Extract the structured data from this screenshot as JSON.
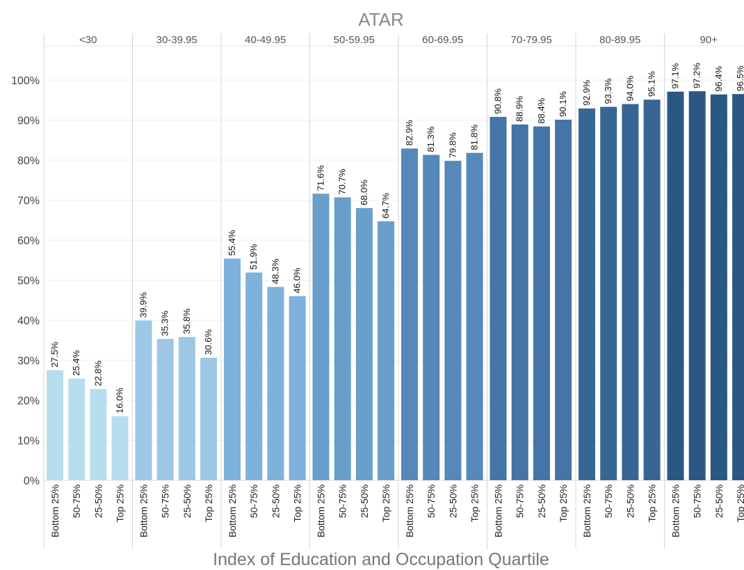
{
  "chart_data": {
    "type": "bar",
    "title": "ATAR",
    "xlabel": "Index of Education and Occupation Quartile",
    "ylabel": "",
    "ylim": [
      0,
      100
    ],
    "yticks": [
      "0%",
      "10%",
      "20%",
      "30%",
      "40%",
      "50%",
      "60%",
      "70%",
      "80%",
      "90%",
      "100%"
    ],
    "groups": [
      {
        "label": "<30",
        "color": "#b8ddef",
        "bars": [
          {
            "category": "Bottom 25%",
            "value": 27.5,
            "label": "27.5%"
          },
          {
            "category": "50-75%",
            "value": 25.4,
            "label": "25.4%"
          },
          {
            "category": "25-50%",
            "value": 22.8,
            "label": "22.8%"
          },
          {
            "category": "Top 25%",
            "value": 16.0,
            "label": "16.0%"
          }
        ]
      },
      {
        "label": "30-39.95",
        "color": "#9cc8e6",
        "bars": [
          {
            "category": "Bottom 25%",
            "value": 39.9,
            "label": "39.9%"
          },
          {
            "category": "50-75%",
            "value": 35.3,
            "label": "35.3%"
          },
          {
            "category": "25-50%",
            "value": 35.8,
            "label": "35.8%"
          },
          {
            "category": "Top 25%",
            "value": 30.6,
            "label": "30.6%"
          }
        ]
      },
      {
        "label": "40-49.95",
        "color": "#7eb1db",
        "bars": [
          {
            "category": "Bottom 25%",
            "value": 55.4,
            "label": "55.4%"
          },
          {
            "category": "50-75%",
            "value": 51.9,
            "label": "51.9%"
          },
          {
            "category": "25-50%",
            "value": 48.3,
            "label": "48.3%"
          },
          {
            "category": "Top 25%",
            "value": 46.0,
            "label": "46.0%"
          }
        ]
      },
      {
        "label": "50-59.95",
        "color": "#6a9fcb",
        "bars": [
          {
            "category": "Bottom 25%",
            "value": 71.6,
            "label": "71.6%"
          },
          {
            "category": "50-75%",
            "value": 70.7,
            "label": "70.7%"
          },
          {
            "category": "25-50%",
            "value": 68.0,
            "label": "68.0%"
          },
          {
            "category": "Top 25%",
            "value": 64.7,
            "label": "64.7%"
          }
        ]
      },
      {
        "label": "60-69.95",
        "color": "#5688ba",
        "bars": [
          {
            "category": "Bottom 25%",
            "value": 82.9,
            "label": "82.9%"
          },
          {
            "category": "50-75%",
            "value": 81.3,
            "label": "81.3%"
          },
          {
            "category": "25-50%",
            "value": 79.8,
            "label": "79.8%"
          },
          {
            "category": "Top 25%",
            "value": 81.8,
            "label": "81.8%"
          }
        ]
      },
      {
        "label": "70-79.95",
        "color": "#4574a7",
        "bars": [
          {
            "category": "Bottom 25%",
            "value": 90.8,
            "label": "90.8%"
          },
          {
            "category": "50-75%",
            "value": 88.9,
            "label": "88.9%"
          },
          {
            "category": "25-50%",
            "value": 88.4,
            "label": "88.4%"
          },
          {
            "category": "Top 25%",
            "value": 90.1,
            "label": "90.1%"
          }
        ]
      },
      {
        "label": "80-89.95",
        "color": "#386694",
        "bars": [
          {
            "category": "Bottom 25%",
            "value": 92.9,
            "label": "92.9%"
          },
          {
            "category": "50-75%",
            "value": 93.3,
            "label": "93.3%"
          },
          {
            "category": "25-50%",
            "value": 94.0,
            "label": "94.0%"
          },
          {
            "category": "Top 25%",
            "value": 95.1,
            "label": "95.1%"
          }
        ]
      },
      {
        "label": "90+",
        "color": "#2b5783",
        "bars": [
          {
            "category": "Bottom 25%",
            "value": 97.1,
            "label": "97.1%"
          },
          {
            "category": "50-75%",
            "value": 97.2,
            "label": "97.2%"
          },
          {
            "category": "25-50%",
            "value": 96.4,
            "label": "96.4%"
          },
          {
            "category": "Top 25%",
            "value": 96.5,
            "label": "96.5%"
          }
        ]
      }
    ],
    "grid": true,
    "legend": "none"
  }
}
